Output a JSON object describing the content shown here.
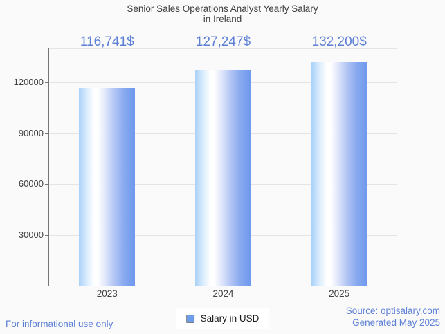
{
  "title": {
    "line1": "Senior Sales Operations Analyst Yearly Salary",
    "line2": "in Ireland"
  },
  "chart_data": {
    "type": "bar",
    "title": "Senior Sales Operations Analyst Yearly Salary in Ireland",
    "categories": [
      "2023",
      "2024",
      "2025"
    ],
    "values": [
      116741,
      127247,
      132200
    ],
    "value_labels": [
      "116,741$",
      "127,247$",
      "132,200$"
    ],
    "series_name": "Salary in USD",
    "ylabel": "",
    "xlabel": "",
    "yticks": [
      30000,
      60000,
      90000,
      120000
    ],
    "ytick_labels": [
      "30000",
      "60000",
      "90000",
      "120000"
    ],
    "ylim": [
      0,
      140000
    ],
    "grid": true,
    "legend_position": "bottom-center"
  },
  "legend": {
    "label": "Salary in USD",
    "swatch_color": "#6d9eeb"
  },
  "footer": {
    "disclaimer": "For informational use only",
    "source": "Source: optisalary.com",
    "generated": "Generated May 2025"
  },
  "colors": {
    "background": "#fafafa",
    "accent_blue": "#5d80d6",
    "bar_main": "#6d98ed",
    "bar_light": "#a9d1f9",
    "axis": "#767676",
    "grid": "#e4e4e4",
    "text": "#424242"
  }
}
